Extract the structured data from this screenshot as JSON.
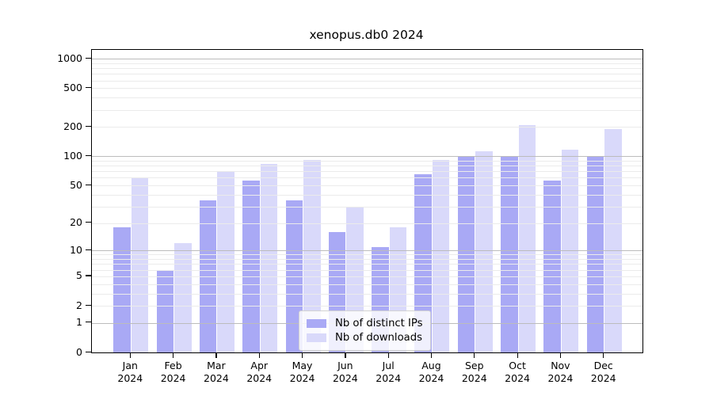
{
  "title": "xenopus.db0 2024",
  "colors": {
    "ips_bar": "#a9a9f5",
    "downloads_bar": "#d9d9fa",
    "grid_major": "#bcbcbc",
    "grid_minor": "#ebebeb",
    "axis": "#000000",
    "legend_border": "#d2d2d2"
  },
  "legend": {
    "items": [
      {
        "label": "Nb of distinct IPs",
        "series": "ips"
      },
      {
        "label": "Nb of downloads",
        "series": "downloads"
      }
    ]
  },
  "chart_data": {
    "type": "bar",
    "title": "xenopus.db0 2024",
    "categories": [
      "Jan 2024",
      "Feb 2024",
      "Mar 2024",
      "Apr 2024",
      "May 2024",
      "Jun 2024",
      "Jul 2024",
      "Aug 2024",
      "Sep 2024",
      "Oct 2024",
      "Nov 2024",
      "Dec 2024"
    ],
    "series": [
      {
        "name": "Nb of distinct IPs",
        "values": [
          18,
          6,
          35,
          56,
          35,
          16,
          11,
          65,
          100,
          100,
          56,
          100
        ]
      },
      {
        "name": "Nb of downloads",
        "values": [
          60,
          12,
          70,
          84,
          91,
          30,
          18,
          92,
          112,
          210,
          118,
          190
        ]
      }
    ],
    "xlabel": "",
    "ylabel": "",
    "yscale": "log1p",
    "ylim": [
      0,
      1070
    ],
    "yticks": [
      0,
      1,
      2,
      5,
      10,
      20,
      50,
      100,
      200,
      500,
      1000
    ],
    "ytick_labels": [
      "0",
      "1",
      "2",
      "5",
      "10",
      "20",
      "50",
      "100",
      "200",
      "500",
      "1000"
    ],
    "major_gridlines": [
      1,
      10,
      100,
      1000
    ],
    "minor_gridlines": [
      2,
      3,
      4,
      5,
      6,
      7,
      8,
      9,
      20,
      30,
      40,
      50,
      60,
      70,
      80,
      90,
      200,
      300,
      400,
      500,
      600,
      700,
      800,
      900
    ],
    "grid": true,
    "legend_position": "inside-bottom-center"
  }
}
